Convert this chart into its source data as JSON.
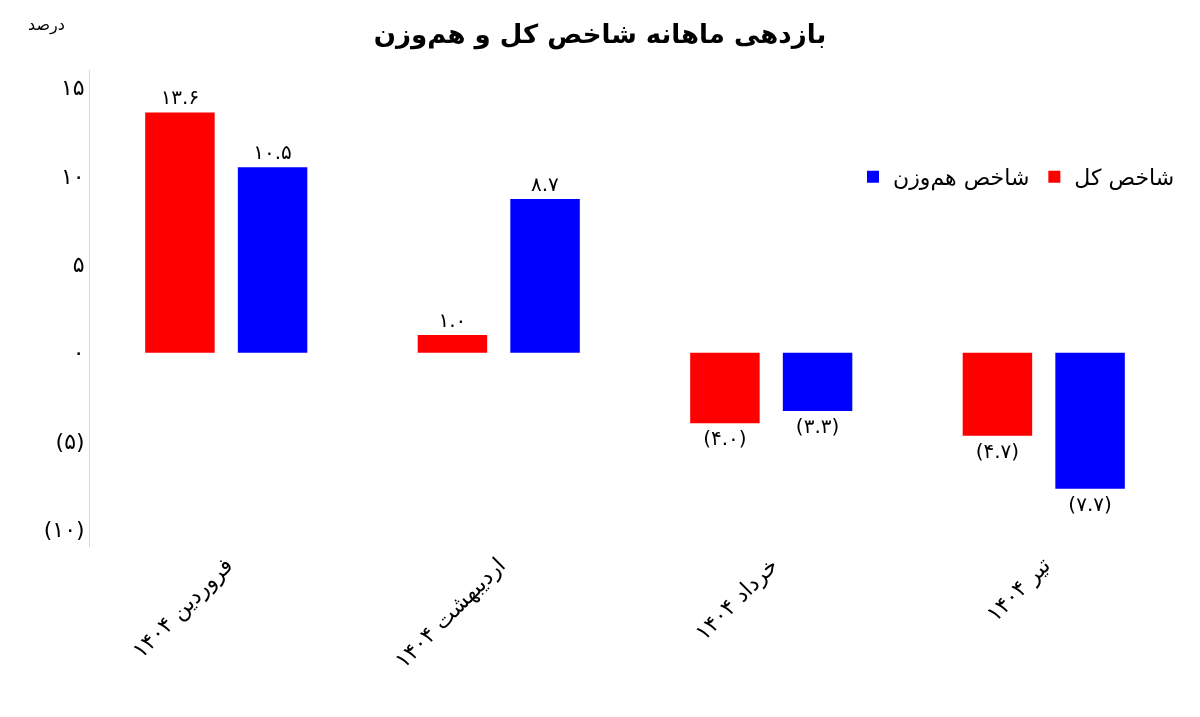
{
  "chart_data": {
    "type": "bar",
    "title": "بازدهی ماهانه شاخص کل و هم‌وزن",
    "ylabel": "درصد",
    "categories": [
      "فروردین ۱۴۰۴",
      "اردیبهشت ۱۴۰۴",
      "خرداد ۱۴۰۴",
      "تیر ۱۴۰۴"
    ],
    "series": [
      {
        "name": "شاخص کل",
        "color": "#ff0000",
        "values": [
          13.6,
          1.0,
          -4.0,
          -4.7
        ],
        "value_labels": [
          "۱۳.۶",
          "۱.۰",
          "(۴.۰)",
          "(۴.۷)"
        ]
      },
      {
        "name": "شاخص هم‌وزن",
        "color": "#0000ff",
        "values": [
          10.5,
          8.7,
          -3.3,
          -7.7
        ],
        "value_labels": [
          "۱۰.۵",
          "۸.۷",
          "(۳.۳)",
          "(۷.۷)"
        ]
      }
    ],
    "ylim": [
      -11,
      16
    ],
    "yticks": [
      {
        "value": 15,
        "label": "۱۵"
      },
      {
        "value": 10,
        "label": "۱۰"
      },
      {
        "value": 5,
        "label": "۵"
      },
      {
        "value": 0,
        "label": "۰"
      },
      {
        "value": -5,
        "label": "(۵)"
      },
      {
        "value": -10,
        "label": "(۱۰)"
      }
    ],
    "grid": false,
    "legend": "top right"
  }
}
